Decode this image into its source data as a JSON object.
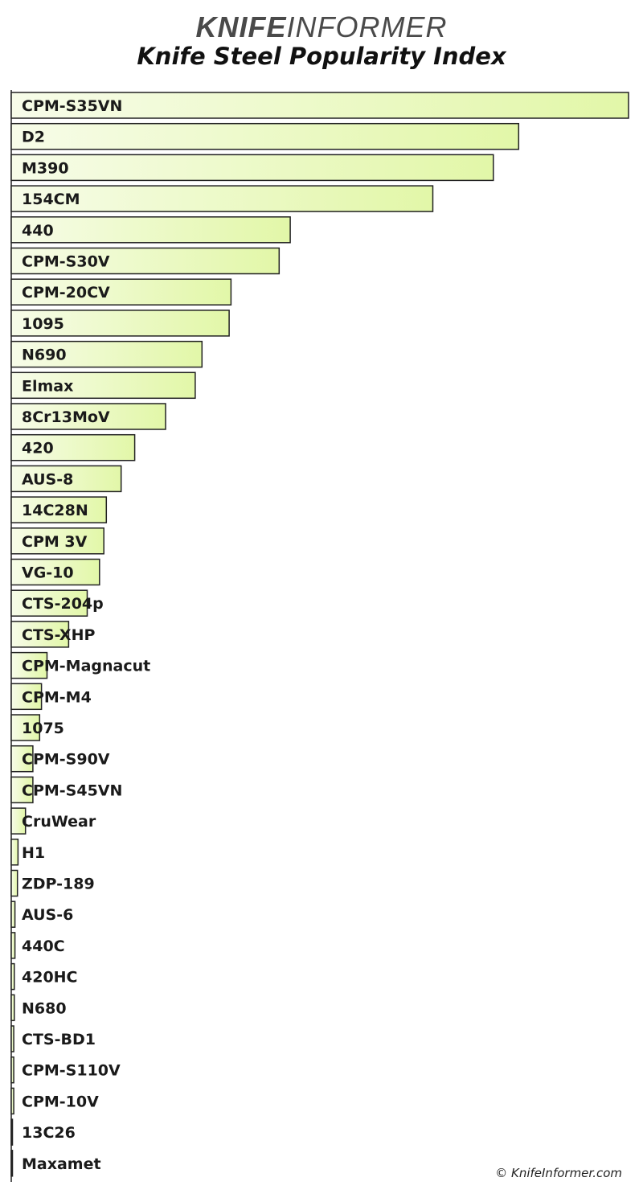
{
  "header": {
    "brand_bold": "KNIFE",
    "brand_light": "INFORMER",
    "title": "Knife Steel Popularity Index"
  },
  "footer": {
    "credit": "© KnifeInformer.com"
  },
  "colors": {
    "bar_fill_start": "#f7fce9",
    "bar_fill_end": "#e2f7a8",
    "bar_stroke": "#222222",
    "label": "#1a1a1a"
  },
  "chart_data": {
    "type": "bar",
    "orientation": "horizontal",
    "title": "Knife Steel Popularity Index",
    "xlabel": "",
    "ylabel": "",
    "xlim": [
      0,
      100
    ],
    "grid": false,
    "legend": "none",
    "categories": [
      "CPM-S35VN",
      "D2",
      "M390",
      "154CM",
      "440",
      "CPM-S30V",
      "CPM-20CV",
      "1095",
      "N690",
      "Elmax",
      "8Cr13MoV",
      "420",
      "AUS-8",
      "14C28N",
      "CPM 3V",
      "VG-10",
      "CTS-204p",
      "CTS-XHP",
      "CPM-Magnacut",
      "CPM-M4",
      "1075",
      "CPM-S90V",
      "CPM-S45VN",
      "CruWear",
      "H1",
      "ZDP-189",
      "AUS-6",
      "440C",
      "420HC",
      "N680",
      "CTS-BD1",
      "CPM-S110V",
      "CPM-10V",
      "13C26",
      "Maxamet"
    ],
    "values": [
      100,
      82.2,
      78.1,
      68.3,
      45.2,
      43.4,
      35.6,
      35.3,
      30.9,
      29.8,
      25.0,
      20.0,
      17.8,
      15.4,
      15.0,
      14.3,
      12.3,
      9.3,
      5.8,
      4.9,
      4.6,
      3.5,
      3.5,
      2.3,
      1.1,
      1.0,
      0.6,
      0.6,
      0.5,
      0.5,
      0.4,
      0.4,
      0.4,
      0.2,
      0.2
    ]
  }
}
